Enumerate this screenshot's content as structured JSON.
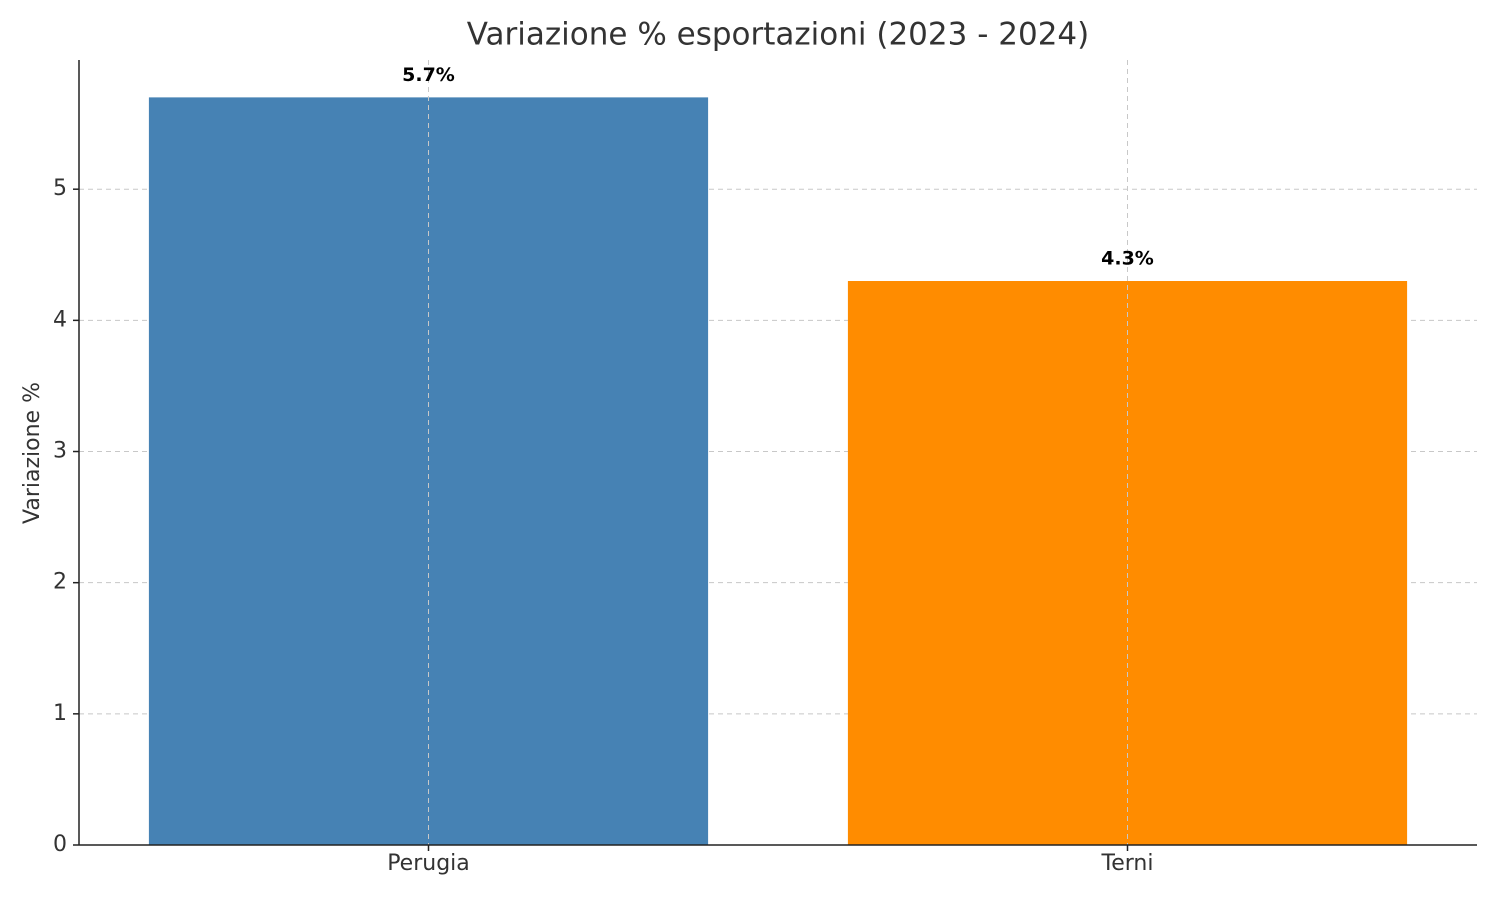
{
  "chart_data": {
    "type": "bar",
    "title": "Variazione % esportazioni (2023 - 2024)",
    "y_label": "Variazione %",
    "categories": [
      "Perugia",
      "Terni"
    ],
    "values": [
      5.7,
      4.3
    ],
    "value_labels": [
      "5.7%",
      "4.3%"
    ],
    "colors": [
      "#4682b4",
      "#ff8c00"
    ],
    "ylim": [
      0,
      5.985
    ],
    "yticks": [
      0,
      1,
      2,
      3,
      4,
      5
    ],
    "grid": true
  }
}
